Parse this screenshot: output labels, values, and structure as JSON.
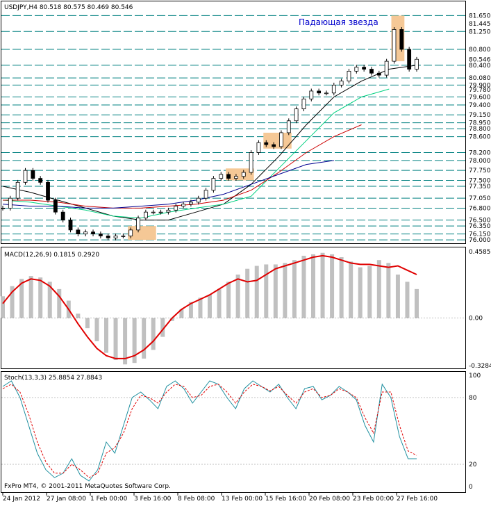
{
  "main": {
    "symbol_header": "USDJPY,H4  80.518 80.575 80.469 80.546",
    "annotation": "Падающая звезда",
    "price_labels": [
      "81.650",
      "81.445",
      "81.250",
      "80.800",
      "80.546",
      "80.400",
      "80.080",
      "79.900",
      "79.780",
      "79.600",
      "79.400",
      "79.150",
      "78.950",
      "78.800",
      "78.600",
      "78.200",
      "78.000",
      "77.750",
      "77.500",
      "77.350",
      "77.050",
      "76.800",
      "76.500",
      "76.350",
      "76.150",
      "76.000"
    ]
  },
  "macd": {
    "header": "MACD(12,26,9) 0.1815 0.2920",
    "axis_labels": [
      "0.4585",
      "0.00",
      "-0.3284"
    ]
  },
  "stoch": {
    "header": "Stoch(13,3,3) 25.8854 27.8843",
    "axis_labels": [
      "100",
      "80",
      "20",
      "0"
    ]
  },
  "footer": {
    "copyright": "FxPro MT4, © 2001-2011 MetaQuotes Software Corp."
  },
  "time_axis": {
    "labels": [
      "24 Jan 2012",
      "27 Jan 08:00",
      "1 Feb 00:00",
      "3 Feb 16:00",
      "8 Feb 08:00",
      "13 Feb 00:00",
      "15 Feb 16:00",
      "20 Feb 08:00",
      "23 Feb 00:00",
      "27 Feb 16:00"
    ]
  },
  "colors": {
    "level_line": "#008080",
    "ma_fast": "#000000",
    "ma_green": "#00d080",
    "ma_red": "#cc0000",
    "ma_blue": "#000090",
    "macd_hist": "#c0c0c0",
    "macd_signal": "#e00000",
    "stoch_main": "#2090a0",
    "stoch_signal": "#e00000",
    "highlight": "#f5c896",
    "annotation": "#0000cc"
  },
  "chart_data": [
    {
      "type": "candlestick",
      "title": "USDJPY,H4",
      "ylim": [
        75.95,
        81.78
      ],
      "price_levels": [
        81.65,
        81.25,
        80.8,
        80.4,
        80.08,
        79.9,
        79.6,
        79.4,
        79.15,
        78.95,
        78.8,
        78.6,
        78.2,
        78.0,
        77.75,
        77.5,
        77.35,
        77.05,
        76.8,
        76.5,
        76.35,
        76.15,
        76.0
      ],
      "close_path": [
        76.8,
        77.05,
        77.45,
        77.75,
        77.55,
        77.45,
        77.0,
        76.7,
        76.5,
        76.25,
        76.15,
        76.2,
        76.15,
        76.1,
        76.05,
        76.1,
        76.1,
        76.25,
        76.55,
        76.7,
        76.7,
        76.7,
        76.75,
        76.85,
        76.9,
        76.95,
        77.05,
        77.25,
        77.55,
        77.65,
        77.55,
        77.6,
        77.7,
        78.2,
        78.45,
        78.4,
        78.35,
        78.7,
        79.0,
        79.3,
        79.55,
        79.75,
        79.7,
        79.7,
        79.9,
        80.0,
        80.25,
        80.35,
        80.3,
        80.2,
        80.15,
        80.5,
        81.3,
        80.8,
        80.3,
        80.55
      ],
      "moving_averages": [
        {
          "color": "#000000",
          "values": [
            77.35,
            77.2,
            77.0,
            76.8,
            76.6,
            76.5,
            76.5,
            76.7,
            76.9,
            77.4,
            78.1,
            78.9,
            79.6,
            80.0,
            80.3,
            80.4
          ]
        },
        {
          "color": "#00d080",
          "values": [
            77.0,
            76.95,
            76.85,
            76.75,
            76.6,
            76.55,
            76.7,
            76.8,
            76.9,
            77.1,
            77.8,
            78.5,
            79.2,
            79.6,
            79.8
          ]
        },
        {
          "color": "#cc0000",
          "values": [
            77.0,
            77.0,
            76.95,
            76.85,
            76.8,
            76.8,
            76.85,
            76.9,
            77.0,
            77.25,
            77.7,
            78.2,
            78.6,
            78.9
          ]
        },
        {
          "color": "#000090",
          "values": [
            76.9,
            76.85,
            76.85,
            76.8,
            76.8,
            76.85,
            76.9,
            77.0,
            77.15,
            77.4,
            77.65,
            77.9,
            78.0
          ]
        }
      ],
      "highlight_zones": [
        {
          "from_index": 17,
          "to_index": 20,
          "low": 76.0,
          "high": 76.35
        },
        {
          "from_index": 30,
          "to_index": 33,
          "low": 77.5,
          "high": 77.8
        },
        {
          "from_index": 35,
          "to_index": 38,
          "low": 78.3,
          "high": 78.7
        },
        {
          "from_index": 52,
          "to_index": 53,
          "low": 80.5,
          "high": 81.65
        }
      ]
    },
    {
      "type": "bar",
      "title": "MACD(12,26,9)",
      "ylim": [
        -0.3284,
        0.4585
      ],
      "series": [
        {
          "name": "MACD",
          "values": [
            0.15,
            0.22,
            0.27,
            0.29,
            0.28,
            0.25,
            0.2,
            0.12,
            0.03,
            -0.07,
            -0.16,
            -0.24,
            -0.29,
            -0.32,
            -0.31,
            -0.28,
            -0.22,
            -0.13,
            -0.02,
            0.06,
            0.11,
            0.14,
            0.16,
            0.2,
            0.25,
            0.3,
            0.34,
            0.36,
            0.37,
            0.37,
            0.38,
            0.4,
            0.43,
            0.44,
            0.45,
            0.44,
            0.42,
            0.39,
            0.35,
            0.36,
            0.4,
            0.38,
            0.3,
            0.25,
            0.2
          ]
        },
        {
          "name": "Signal",
          "values": [
            0.1,
            0.18,
            0.24,
            0.27,
            0.26,
            0.22,
            0.15,
            0.06,
            -0.04,
            -0.13,
            -0.21,
            -0.26,
            -0.28,
            -0.28,
            -0.26,
            -0.22,
            -0.16,
            -0.08,
            0.0,
            0.06,
            0.1,
            0.13,
            0.16,
            0.2,
            0.24,
            0.27,
            0.25,
            0.26,
            0.3,
            0.34,
            0.36,
            0.38,
            0.4,
            0.42,
            0.43,
            0.42,
            0.4,
            0.38,
            0.37,
            0.37,
            0.36,
            0.35,
            0.36,
            0.33,
            0.3
          ]
        }
      ]
    },
    {
      "type": "line",
      "title": "Stoch(13,3,3)",
      "ylim": [
        0,
        100
      ],
      "series": [
        {
          "name": "Stoch",
          "values": [
            90,
            95,
            80,
            55,
            30,
            15,
            8,
            12,
            25,
            10,
            5,
            15,
            40,
            30,
            55,
            80,
            85,
            78,
            70,
            90,
            95,
            88,
            75,
            85,
            95,
            92,
            80,
            70,
            88,
            95,
            90,
            85,
            92,
            80,
            70,
            88,
            90,
            78,
            82,
            90,
            85,
            78,
            55,
            40,
            92,
            80,
            45,
            25,
            25
          ]
        },
        {
          "name": "Signal",
          "values": [
            88,
            92,
            85,
            65,
            40,
            22,
            12,
            12,
            20,
            15,
            8,
            12,
            30,
            35,
            48,
            70,
            82,
            80,
            75,
            85,
            92,
            90,
            80,
            82,
            90,
            92,
            85,
            75,
            85,
            92,
            90,
            86,
            90,
            82,
            75,
            85,
            88,
            80,
            82,
            88,
            85,
            80,
            62,
            48,
            85,
            85,
            55,
            32,
            28
          ]
        }
      ]
    }
  ]
}
